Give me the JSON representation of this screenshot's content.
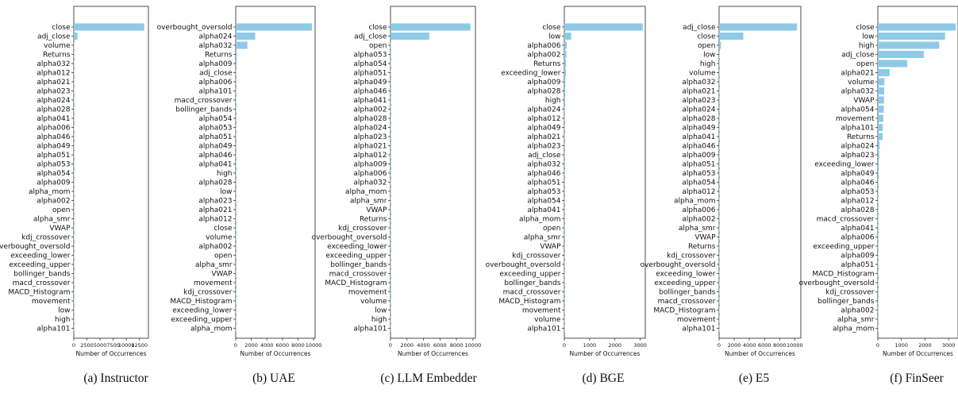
{
  "chart_data": [
    {
      "type": "bar",
      "orientation": "horizontal",
      "caption": "(a) Instructor",
      "xlabel": "Number of Occurrences",
      "xlim": [
        0,
        14200
      ],
      "xticks": [
        0,
        2500,
        5000,
        7500,
        10000,
        12500
      ],
      "xtick_labels": [
        "0",
        "2500",
        "5000",
        "7500",
        "10000",
        "12500"
      ],
      "categories": [
        "close",
        "adj_close",
        "volume",
        "Returns",
        "alpha032",
        "alpha012",
        "alpha021",
        "alpha023",
        "alpha024",
        "alpha028",
        "alpha041",
        "alpha006",
        "alpha046",
        "alpha049",
        "alpha051",
        "alpha053",
        "alpha054",
        "alpha009",
        "alpha_mom",
        "alpha002",
        "open",
        "alpha_smr",
        "VWAP",
        "kdj_crossover",
        "overbought_oversold",
        "exceeding_lower",
        "exceeding_upper",
        "bollinger_bands",
        "macd_crossover",
        "MACD_Histogram",
        "movement",
        "low",
        "high",
        "alpha101"
      ],
      "values": [
        13400,
        700,
        60,
        40,
        30,
        25,
        20,
        20,
        18,
        15,
        15,
        12,
        12,
        10,
        10,
        10,
        10,
        8,
        8,
        6,
        6,
        5,
        5,
        4,
        4,
        3,
        3,
        3,
        2,
        2,
        2,
        1,
        1,
        1
      ]
    },
    {
      "type": "bar",
      "orientation": "horizontal",
      "caption": "(b) UAE",
      "xlabel": "Number of Occurrences",
      "xlim": [
        0,
        10200
      ],
      "xticks": [
        0,
        2000,
        4000,
        6000,
        8000,
        10000
      ],
      "xtick_labels": [
        "0",
        "2000",
        "4000",
        "6000",
        "8000",
        "10000"
      ],
      "categories": [
        "overbought_oversold",
        "alpha024",
        "alpha032",
        "Returns",
        "alpha009",
        "adj_close",
        "alpha006",
        "alpha101",
        "macd_crossover",
        "bollinger_bands",
        "alpha054",
        "alpha053",
        "alpha051",
        "alpha049",
        "alpha046",
        "alpha041",
        "high",
        "alpha028",
        "low",
        "alpha023",
        "alpha021",
        "alpha012",
        "close",
        "volume",
        "alpha002",
        "open",
        "alpha_smr",
        "VWAP",
        "movement",
        "kdj_crossover",
        "MACD_Histogram",
        "exceeding_lower",
        "exceeding_upper",
        "alpha_mom"
      ],
      "values": [
        9800,
        2500,
        1500,
        120,
        100,
        40,
        30,
        25,
        20,
        20,
        15,
        15,
        12,
        12,
        10,
        10,
        8,
        8,
        8,
        6,
        6,
        6,
        5,
        5,
        4,
        4,
        3,
        3,
        3,
        2,
        2,
        2,
        1,
        1
      ]
    },
    {
      "type": "bar",
      "orientation": "horizontal",
      "caption": "(c) LLM Embedder",
      "xlabel": "Number of Occurrences",
      "xlim": [
        0,
        10300
      ],
      "xticks": [
        0,
        2000,
        4000,
        6000,
        8000,
        10000
      ],
      "xtick_labels": [
        "0",
        "2000",
        "4000",
        "6000",
        "8000",
        "10000"
      ],
      "categories": [
        "close",
        "adj_close",
        "open",
        "alpha053",
        "alpha054",
        "alpha051",
        "alpha049",
        "alpha046",
        "alpha041",
        "alpha002",
        "alpha028",
        "alpha024",
        "alpha023",
        "alpha021",
        "alpha012",
        "alpha009",
        "alpha006",
        "alpha032",
        "alpha_mom",
        "alpha_smr",
        "VWAP",
        "Returns",
        "kdj_crossover",
        "overbought_oversold",
        "exceeding_lower",
        "exceeding_upper",
        "bollinger_bands",
        "macd_crossover",
        "MACD_Histogram",
        "movement",
        "volume",
        "low",
        "high",
        "alpha101"
      ],
      "values": [
        9700,
        4700,
        30,
        20,
        18,
        16,
        15,
        14,
        13,
        12,
        12,
        11,
        10,
        10,
        9,
        9,
        8,
        8,
        7,
        7,
        6,
        6,
        5,
        5,
        4,
        4,
        3,
        3,
        3,
        2,
        2,
        2,
        1,
        1
      ]
    },
    {
      "type": "bar",
      "orientation": "horizontal",
      "caption": "(d) BGE",
      "xlabel": "Number of Occurrences",
      "xlim": [
        0,
        3200
      ],
      "xticks": [
        0,
        1000,
        2000,
        3000
      ],
      "xtick_labels": [
        "0",
        "1000",
        "2000",
        "3000"
      ],
      "categories": [
        "close",
        "low",
        "alpha006",
        "alpha002",
        "Returns",
        "exceeding_lower",
        "alpha009",
        "alpha028",
        "high",
        "alpha024",
        "alpha012",
        "alpha049",
        "alpha021",
        "alpha023",
        "adj_close",
        "alpha032",
        "alpha046",
        "alpha051",
        "alpha053",
        "alpha054",
        "alpha041",
        "alpha_mom",
        "open",
        "alpha_smr",
        "VWAP",
        "kdj_crossover",
        "overbought_oversold",
        "exceeding_upper",
        "bollinger_bands",
        "macd_crossover",
        "MACD_Histogram",
        "movement",
        "volume",
        "alpha101"
      ],
      "values": [
        3100,
        270,
        90,
        80,
        70,
        60,
        40,
        35,
        25,
        20,
        18,
        15,
        12,
        12,
        10,
        10,
        8,
        8,
        7,
        7,
        6,
        6,
        5,
        5,
        4,
        4,
        3,
        3,
        3,
        2,
        2,
        2,
        1,
        1
      ]
    },
    {
      "type": "bar",
      "orientation": "horizontal",
      "caption": "(e) E5",
      "xlabel": "Number of Occurrences",
      "xlim": [
        0,
        10800
      ],
      "xticks": [
        0,
        2000,
        4000,
        6000,
        8000,
        10000
      ],
      "xtick_labels": [
        "0",
        "2000",
        "4000",
        "6000",
        "8000",
        "10000"
      ],
      "categories": [
        "adj_close",
        "close",
        "open",
        "low",
        "high",
        "volume",
        "alpha032",
        "alpha021",
        "alpha023",
        "alpha024",
        "alpha028",
        "alpha049",
        "alpha041",
        "alpha046",
        "alpha009",
        "alpha051",
        "alpha053",
        "alpha054",
        "alpha012",
        "alpha_mom",
        "alpha006",
        "alpha002",
        "alpha_smr",
        "VWAP",
        "Returns",
        "kdj_crossover",
        "overbought_oversold",
        "exceeding_lower",
        "exceeding_upper",
        "bollinger_bands",
        "macd_crossover",
        "MACD_Histogram",
        "movement",
        "alpha101"
      ],
      "values": [
        10300,
        3200,
        250,
        60,
        50,
        40,
        30,
        25,
        20,
        18,
        16,
        15,
        14,
        12,
        12,
        10,
        10,
        9,
        8,
        8,
        7,
        6,
        5,
        5,
        4,
        4,
        3,
        3,
        3,
        2,
        2,
        2,
        1,
        1
      ]
    },
    {
      "type": "bar",
      "orientation": "horizontal",
      "caption": "(f) FinSeer",
      "xlabel": "Number of Occurrences",
      "xlim": [
        0,
        3400
      ],
      "xticks": [
        0,
        1000,
        2000,
        3000
      ],
      "xtick_labels": [
        "0",
        "1000",
        "2000",
        "3000"
      ],
      "categories": [
        "close",
        "low",
        "high",
        "adj_close",
        "open",
        "alpha021",
        "volume",
        "alpha032",
        "VWAP",
        "alpha054",
        "movement",
        "alpha101",
        "Returns",
        "alpha024",
        "alpha023",
        "exceeding_lower",
        "alpha049",
        "alpha046",
        "alpha053",
        "alpha012",
        "alpha028",
        "macd_crossover",
        "alpha041",
        "alpha006",
        "exceeding_upper",
        "alpha009",
        "alpha051",
        "MACD_Histogram",
        "overbought_oversold",
        "kdj_crossover",
        "bollinger_bands",
        "alpha002",
        "alpha_smr",
        "alpha_mom"
      ],
      "values": [
        3300,
        2850,
        2600,
        1950,
        1250,
        500,
        280,
        270,
        260,
        250,
        230,
        210,
        200,
        80,
        60,
        40,
        30,
        25,
        20,
        18,
        15,
        12,
        10,
        9,
        8,
        7,
        6,
        5,
        4,
        3,
        2,
        2,
        1,
        1
      ]
    }
  ],
  "style": {
    "bar_color": "#8ecae6",
    "frame_color": "#222222"
  }
}
